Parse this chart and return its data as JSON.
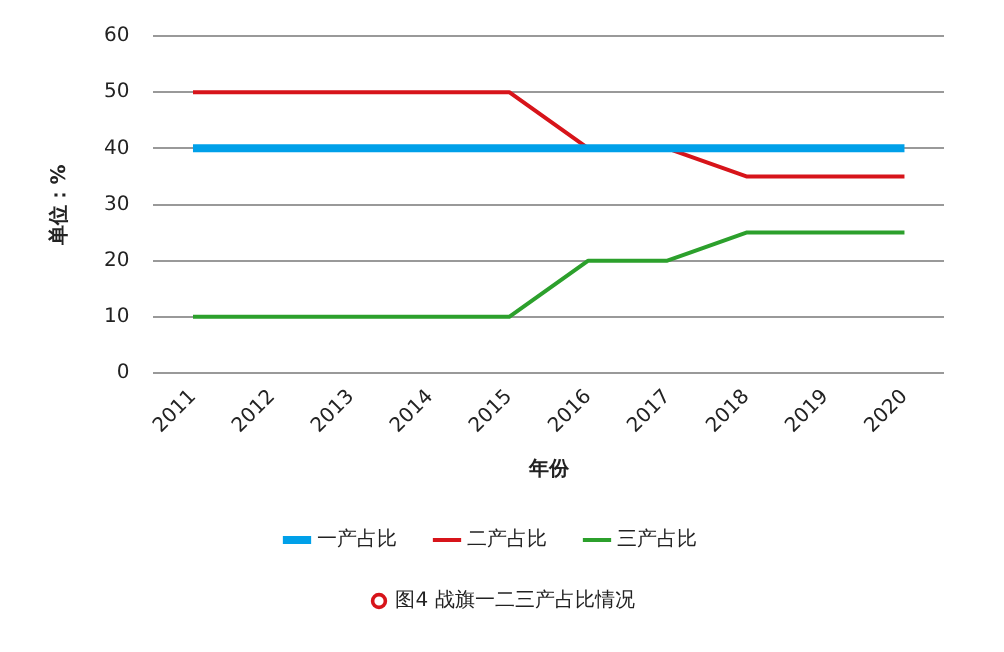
{
  "chart_data": {
    "type": "line",
    "xlabel": "年份",
    "ylabel": "单位：%",
    "categories": [
      "2011",
      "2012",
      "2013",
      "2014",
      "2015",
      "2016",
      "2017",
      "2018",
      "2019",
      "2020"
    ],
    "series": [
      {
        "name": "一产占比",
        "color": "#00a0e9",
        "values": [
          40,
          40,
          40,
          40,
          40,
          40,
          40,
          40,
          40,
          40
        ]
      },
      {
        "name": "二产占比",
        "color": "#d7141a",
        "values": [
          50,
          50,
          50,
          50,
          50,
          40,
          40,
          35,
          35,
          35
        ]
      },
      {
        "name": "三产占比",
        "color": "#2ca02c",
        "values": [
          10,
          10,
          10,
          10,
          10,
          20,
          20,
          25,
          25,
          25
        ]
      }
    ],
    "ylim": [
      0,
      60
    ],
    "yticks": [
      0,
      10,
      20,
      30,
      40,
      50,
      60
    ],
    "grid": "y",
    "legend": "bottom",
    "marker": "none",
    "line_style": "solid",
    "annotations": [
      "图4 战旗一二三产占比情况"
    ]
  }
}
